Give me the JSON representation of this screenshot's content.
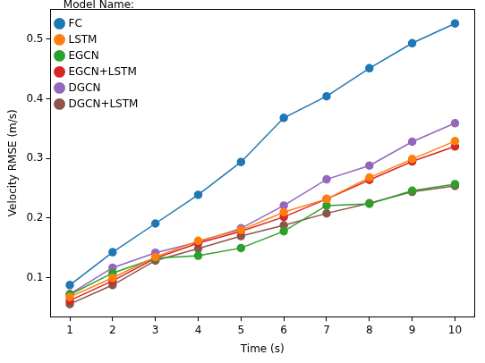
{
  "chart_data": {
    "type": "line",
    "x_label": "Time (s)",
    "y_label": "Velocity RMSE (m/s)",
    "x": [
      1,
      2,
      3,
      4,
      5,
      6,
      7,
      8,
      9,
      10
    ],
    "series": [
      {
        "name": "FC",
        "color": "#1f77b4",
        "values": [
          0.088,
          0.143,
          0.191,
          0.239,
          0.294,
          0.368,
          0.404,
          0.451,
          0.493,
          0.526
        ]
      },
      {
        "name": "LSTM",
        "color": "#ff7f0e",
        "values": [
          0.068,
          0.1,
          0.135,
          0.162,
          0.18,
          0.21,
          0.232,
          0.268,
          0.299,
          0.329
        ]
      },
      {
        "name": "EGCN",
        "color": "#2ca02c",
        "values": [
          0.072,
          0.108,
          0.133,
          0.137,
          0.15,
          0.178,
          0.221,
          0.224,
          0.246,
          0.257
        ]
      },
      {
        "name": "EGCN+LSTM",
        "color": "#d62728",
        "values": [
          0.062,
          0.095,
          0.133,
          0.158,
          0.178,
          0.202,
          0.232,
          0.264,
          0.295,
          0.32
        ]
      },
      {
        "name": "DGCN",
        "color": "#9467bd",
        "values": [
          0.073,
          0.117,
          0.142,
          0.16,
          0.183,
          0.221,
          0.265,
          0.288,
          0.328,
          0.359
        ]
      },
      {
        "name": "DGCN+LSTM",
        "color": "#8c564b",
        "values": [
          0.056,
          0.088,
          0.129,
          0.149,
          0.17,
          0.188,
          0.208,
          0.225,
          0.244,
          0.254
        ]
      }
    ],
    "xlim": [
      0.55,
      10.45
    ],
    "xticks": [
      1,
      2,
      3,
      4,
      5,
      6,
      7,
      8,
      9,
      10
    ],
    "ylim": [
      0.035,
      0.55
    ],
    "yticks": [
      0.1,
      0.2,
      0.3,
      0.4,
      0.5
    ],
    "legend": "upper left",
    "legend_title": "Model Name:",
    "marker": "circle",
    "grid": false
  }
}
